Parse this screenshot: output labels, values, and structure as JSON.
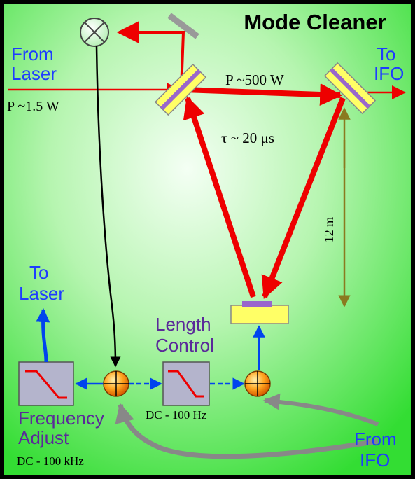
{
  "title": "Mode Cleaner",
  "labels": {
    "from_laser_1": "From",
    "from_laser_2": "Laser",
    "input_power": "P ~1.5 W",
    "cavity_power": "P ~500 W",
    "storage_time": "τ ~ 20 μs",
    "to_ifo_1": "To",
    "to_ifo_2": "IFO",
    "arm_length": "12 m",
    "to_laser_1": "To",
    "to_laser_2": "Laser",
    "length_control_1": "Length",
    "length_control_2": "Control",
    "length_bandwidth": "DC - 100 Hz",
    "frequency_adjust_1": "Frequency",
    "frequency_adjust_2": "Adjust",
    "frequency_bandwidth": "DC - 100 kHz",
    "from_ifo_1": "From",
    "from_ifo_2": "IFO"
  },
  "colors": {
    "background_center": "#f4fff4",
    "background_edge": "#33dd33",
    "beam": "#ee0000",
    "signal_arrow": "#0044ee",
    "mirror_body": "#ffff66",
    "mirror_coating": "#9966cc",
    "text_blue": "#1e3cff",
    "text_purple": "#5a2a99",
    "length_arrow": "#8a7a20",
    "feedback_gray": "#888888",
    "summing_node": "#ff9900"
  },
  "icons": [
    "photodetector-icon",
    "summing-junction-icon",
    "low-pass-filter-icon"
  ]
}
